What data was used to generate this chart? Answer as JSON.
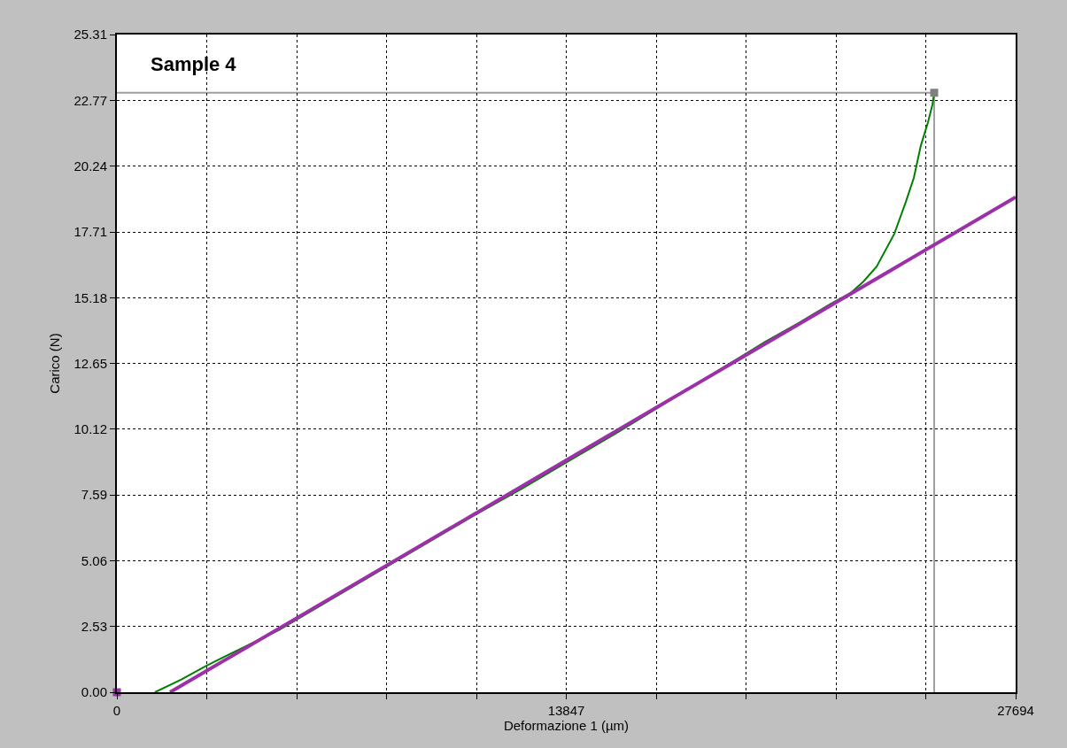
{
  "chart_data": {
    "type": "line",
    "xlabel": "Deformazione 1 (µm)",
    "ylabel": "Carico (N)",
    "annotations": [
      "Sample 4"
    ],
    "xlim": [
      0,
      27694
    ],
    "ylim": [
      0,
      25.31
    ],
    "xticks": [
      0,
      {
        "value": 2769.4,
        "label": null
      },
      {
        "value": 5538.8,
        "label": null
      },
      {
        "value": 8308.2,
        "label": null
      },
      {
        "value": 11077.6,
        "label": null
      },
      13847,
      {
        "value": 16616.4,
        "label": null
      },
      {
        "value": 19385.8,
        "label": null
      },
      {
        "value": 22155.2,
        "label": null
      },
      {
        "value": 24924.6,
        "label": null
      },
      27694
    ],
    "yticks": [
      {
        "value": 0,
        "label": "0.00"
      },
      2.53,
      5.06,
      7.59,
      10.12,
      12.65,
      15.18,
      17.71,
      20.24,
      22.77,
      25.31
    ],
    "grid": true,
    "line_style": "solid",
    "ref_lines": [
      {
        "axis": "y",
        "value": 23.07,
        "color": "#a0a0a0"
      },
      {
        "axis": "x",
        "value": 25184,
        "color": "#a0a0a0"
      }
    ],
    "series": [
      {
        "color": "#008000",
        "marker": "none",
        "x": [
          1173,
          2000,
          2756,
          5000,
          8000,
          11000,
          12500,
          14000,
          15500,
          17000,
          18500,
          20000,
          21000,
          22000,
          22592,
          23000,
          23410,
          23955,
          24310,
          24556,
          24774,
          24992,
          25130,
          25184
        ],
        "values": [
          0,
          0.5,
          1.02,
          2.4,
          4.6,
          6.8,
          7.85,
          8.95,
          10.05,
          11.2,
          12.35,
          13.5,
          14.2,
          14.95,
          15.35,
          15.8,
          16.38,
          17.64,
          18.87,
          19.79,
          21.04,
          21.93,
          22.61,
          23.07
        ]
      },
      {
        "color": "#9b30a8",
        "marker": "none",
        "x": [
          1637,
          27694
        ],
        "values": [
          0,
          19.05
        ]
      },
      {
        "type": "scatter",
        "color": "#808080",
        "marker": "square",
        "x": [
          25184
        ],
        "values": [
          23.07
        ]
      },
      {
        "type": "scatter",
        "color": "#9b30a8",
        "marker": "square",
        "x": [
          0
        ],
        "values": [
          0
        ]
      }
    ]
  }
}
